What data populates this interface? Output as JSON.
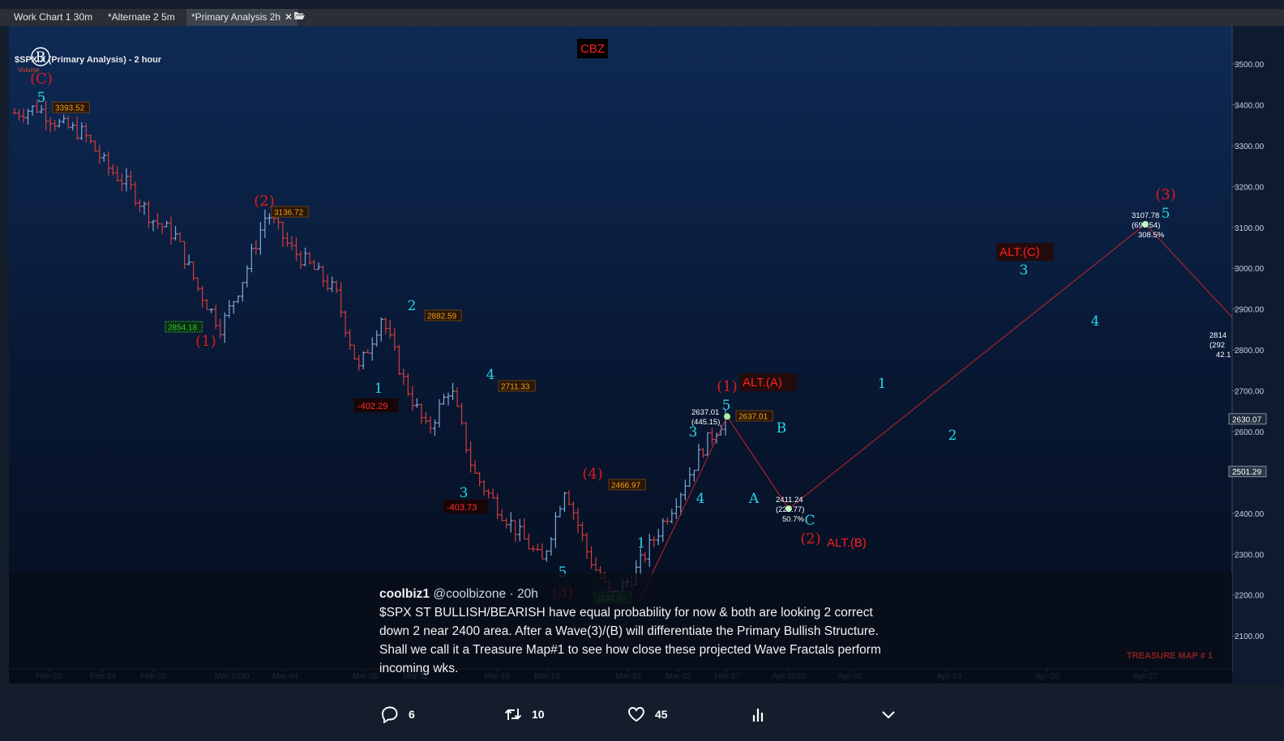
{
  "tabs": [
    {
      "label": "Work Chart 1 30m",
      "active": false
    },
    {
      "label": "*Alternate 2 5m",
      "active": false
    },
    {
      "label": "*Primary Analysis 2h",
      "active": true
    }
  ],
  "chart_title": "$SPX.X (Primary Analysis) - 2 hour",
  "volume_label": "Volume",
  "colors": {
    "bull": "#7fa8d6",
    "bear": "#d43b3b",
    "wave_cyan": "#2ad4e6",
    "wave_red": "#e01b1b",
    "projection": "#b8232c",
    "price_box": "#f0a020",
    "low_box": "#2fd02f"
  },
  "chart_data": {
    "type": "ohlc",
    "y_tick_labels": [
      "3500.00",
      "3400.00",
      "3300.00",
      "3200.00",
      "3100.00",
      "3000.00",
      "2900.00",
      "2800.00",
      "2700.00",
      "2600.00",
      "2500.00",
      "2400.00",
      "2300.00",
      "2200.00",
      "2100.00"
    ],
    "x_tick_labels": [
      "Feb-20",
      "Feb-24",
      "Feb-26",
      "Mar-2020",
      "Mar-04",
      "Mar-09",
      "Mar-11",
      "Mar-16",
      "Mar-18",
      "Mar-23",
      "Mar-25",
      "Mar-27",
      "Apr-2020",
      "Apr-06",
      "Apr-13",
      "Apr-20",
      "Apr-27"
    ],
    "current_price_labels": [
      "2630.07",
      "2501.29"
    ],
    "price_path": [
      3380,
      3393.52,
      3350,
      3330,
      3250,
      3200,
      3120,
      3080,
      2950,
      2854.18,
      2980,
      3136.72,
      3050,
      3000,
      2940,
      2750,
      2882.59,
      2720,
      2600,
      2711.33,
      2500,
      2420,
      2350,
      2280,
      2466.97,
      2300,
      2191.86,
      2250,
      2350,
      2450,
      2560,
      2637.01
    ],
    "projection_path": [
      {
        "date": "Mar-27",
        "price": 2637.01
      },
      {
        "date": "Apr-2020",
        "price": 2411.24
      },
      {
        "date": "Apr-27",
        "price": 3107.78
      },
      {
        "date": "",
        "price": 2880
      }
    ],
    "wave_labels": [
      {
        "text": "B",
        "date": "Feb-20",
        "price": 3500,
        "color": "white"
      },
      {
        "text": "(C)",
        "date": "Feb-20",
        "price": 3450,
        "color": "red"
      },
      {
        "text": "5",
        "date": "Feb-20",
        "price": 3415,
        "color": "cyan"
      },
      {
        "text": "(2)",
        "date": "Mar-2020",
        "price": 3170,
        "color": "red"
      },
      {
        "text": "(1)",
        "date": "Feb-26",
        "price": 2810,
        "color": "red"
      },
      {
        "text": "2",
        "date": "Mar-11",
        "price": 2920,
        "color": "cyan"
      },
      {
        "text": "1",
        "date": "Mar-09",
        "price": 2705,
        "color": "cyan"
      },
      {
        "text": "4",
        "date": "Mar-16",
        "price": 2740,
        "color": "cyan"
      },
      {
        "text": "3",
        "date": "Mar-16",
        "price": 2450,
        "color": "cyan"
      },
      {
        "text": "(4)",
        "date": "Mar-18",
        "price": 2500,
        "color": "red"
      },
      {
        "text": "5",
        "date": "Mar-18",
        "price": 2255,
        "color": "cyan"
      },
      {
        "text": "(3)",
        "date": "Mar-18",
        "price": 2195,
        "color": "red"
      },
      {
        "text": "1",
        "date": "Mar-23",
        "price": 2330,
        "color": "cyan"
      },
      {
        "text": "4",
        "date": "Mar-25",
        "price": 2440,
        "color": "cyan"
      },
      {
        "text": "3",
        "date": "Mar-25",
        "price": 2600,
        "color": "cyan"
      },
      {
        "text": "5",
        "date": "Mar-27",
        "price": 2665,
        "color": "cyan"
      },
      {
        "text": "(1)",
        "date": "Mar-27",
        "price": 2710,
        "color": "red"
      },
      {
        "text": "A",
        "date": "Mar-27",
        "price": 2440,
        "color": "cyan"
      },
      {
        "text": "B",
        "date": "Mar-27",
        "price": 2610,
        "color": "cyan"
      },
      {
        "text": "C",
        "date": "Apr-2020",
        "price": 2385,
        "color": "cyan"
      },
      {
        "text": "(2)",
        "date": "Apr-2020",
        "price": 2335,
        "color": "red"
      },
      {
        "text": "1",
        "date": "Apr-06",
        "price": 2700,
        "color": "cyan"
      },
      {
        "text": "2",
        "date": "Apr-13",
        "price": 2590,
        "color": "cyan"
      },
      {
        "text": "3",
        "date": "Apr-13",
        "price": 2995,
        "color": "cyan"
      },
      {
        "text": "4",
        "date": "Apr-20",
        "price": 2870,
        "color": "cyan"
      },
      {
        "text": "5",
        "date": "Apr-27",
        "price": 3135,
        "color": "cyan"
      },
      {
        "text": "(3)",
        "date": "Apr-27",
        "price": 3180,
        "color": "red"
      }
    ],
    "alt_labels": [
      "ALT.(A)",
      "ALT.(B)",
      "ALT.(C)"
    ],
    "cbz_label": "CBZ",
    "price_boxes": [
      "3393.52",
      "3136.72",
      "2882.59",
      "2711.33",
      "2466.97",
      "2637.01",
      "2854.18",
      "2191.86"
    ],
    "delta_labels": [
      "-402.29",
      "-403.73"
    ],
    "projection_notes": [
      [
        "2637.01",
        "(445.15)"
      ],
      [
        "2411.24",
        "(225.77)",
        "50.7%"
      ],
      [
        "3107.78",
        "(696.54)",
        "308.5%"
      ],
      [
        "2814",
        "(292",
        "42.1"
      ]
    ],
    "watermark": "TREASURE MAP # 1"
  },
  "tweet": {
    "name": "coolbiz1",
    "handle": "@coolbizone",
    "time": "· 20h",
    "body": "$SPX ST BULLISH/BEARISH have equal probability for now & both are looking 2 correct\ndown 2 near 2400 area. After a Wave(3)/(B) will differentiate the Primary Bullish Structure.\nShall we call it a Treasure Map#1  to see how close these projected Wave Fractals perform\nincoming wks."
  },
  "actions": {
    "replies": "6",
    "retweets": "10",
    "likes": "45"
  }
}
